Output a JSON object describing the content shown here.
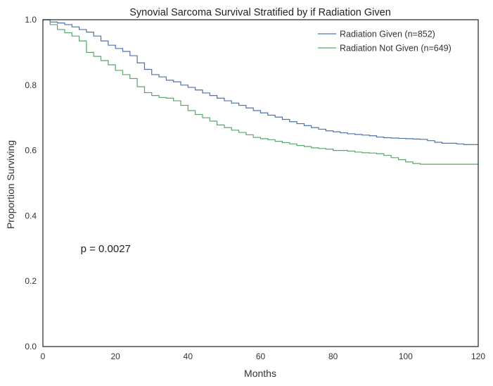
{
  "chart_data": {
    "type": "line",
    "step": true,
    "title": "Synovial Sarcoma Survival Stratified by if Radiation Given",
    "xlabel": "Months",
    "ylabel": "Proportion Surviving",
    "xlim": [
      0,
      120
    ],
    "ylim": [
      0,
      1.0
    ],
    "xticks": [
      0,
      20,
      40,
      60,
      80,
      100,
      120
    ],
    "yticks": [
      0.0,
      0.2,
      0.4,
      0.6,
      0.8,
      1.0
    ],
    "xtick_labels": [
      "0",
      "20",
      "40",
      "60",
      "80",
      "100",
      "120"
    ],
    "ytick_labels": [
      "0.0",
      "0.2",
      "0.4",
      "0.6",
      "0.8",
      "1.0"
    ],
    "grid": false,
    "legend_position": "top-right",
    "annotation": {
      "text": "p = 0.0027",
      "x": 10,
      "y": 0.3
    },
    "series": [
      {
        "name": "Radiation Given (n=852)",
        "color": "#4c72b0",
        "x": [
          0,
          2,
          4,
          6,
          8,
          10,
          12,
          14,
          16,
          18,
          20,
          22,
          24,
          26,
          28,
          30,
          32,
          34,
          36,
          38,
          40,
          42,
          44,
          46,
          48,
          50,
          52,
          54,
          56,
          58,
          60,
          62,
          64,
          66,
          68,
          70,
          72,
          74,
          76,
          78,
          80,
          82,
          84,
          86,
          88,
          90,
          92,
          94,
          96,
          98,
          100,
          102,
          104,
          106,
          108,
          110,
          112,
          114,
          116,
          118,
          120
        ],
        "y": [
          1.0,
          0.993,
          0.99,
          0.985,
          0.978,
          0.97,
          0.962,
          0.95,
          0.935,
          0.922,
          0.912,
          0.903,
          0.89,
          0.868,
          0.848,
          0.832,
          0.825,
          0.815,
          0.81,
          0.8,
          0.793,
          0.785,
          0.776,
          0.768,
          0.76,
          0.752,
          0.745,
          0.738,
          0.73,
          0.722,
          0.715,
          0.708,
          0.702,
          0.695,
          0.688,
          0.682,
          0.676,
          0.67,
          0.665,
          0.66,
          0.657,
          0.654,
          0.651,
          0.649,
          0.647,
          0.645,
          0.641,
          0.639,
          0.638,
          0.637,
          0.636,
          0.635,
          0.634,
          0.63,
          0.625,
          0.622,
          0.622,
          0.62,
          0.618,
          0.618,
          0.618
        ]
      },
      {
        "name": "Radiation Not Given (n=649)",
        "color": "#55a868",
        "x": [
          0,
          2,
          4,
          6,
          8,
          10,
          12,
          14,
          16,
          18,
          20,
          22,
          24,
          26,
          28,
          30,
          32,
          34,
          36,
          38,
          40,
          42,
          44,
          46,
          48,
          50,
          52,
          54,
          56,
          58,
          60,
          62,
          64,
          66,
          68,
          70,
          72,
          74,
          76,
          78,
          80,
          82,
          84,
          86,
          88,
          90,
          92,
          94,
          96,
          98,
          100,
          102,
          104,
          106,
          108,
          110,
          112,
          114,
          116,
          118,
          120
        ],
        "y": [
          1.0,
          0.985,
          0.97,
          0.96,
          0.95,
          0.935,
          0.9,
          0.888,
          0.875,
          0.862,
          0.845,
          0.832,
          0.82,
          0.795,
          0.777,
          0.768,
          0.762,
          0.76,
          0.752,
          0.738,
          0.722,
          0.71,
          0.7,
          0.69,
          0.678,
          0.67,
          0.662,
          0.655,
          0.648,
          0.64,
          0.636,
          0.633,
          0.628,
          0.624,
          0.62,
          0.615,
          0.612,
          0.608,
          0.606,
          0.604,
          0.6,
          0.6,
          0.598,
          0.595,
          0.593,
          0.592,
          0.59,
          0.585,
          0.578,
          0.572,
          0.565,
          0.56,
          0.558,
          0.558,
          0.558,
          0.558,
          0.558,
          0.558,
          0.558,
          0.558,
          0.558
        ]
      }
    ]
  }
}
